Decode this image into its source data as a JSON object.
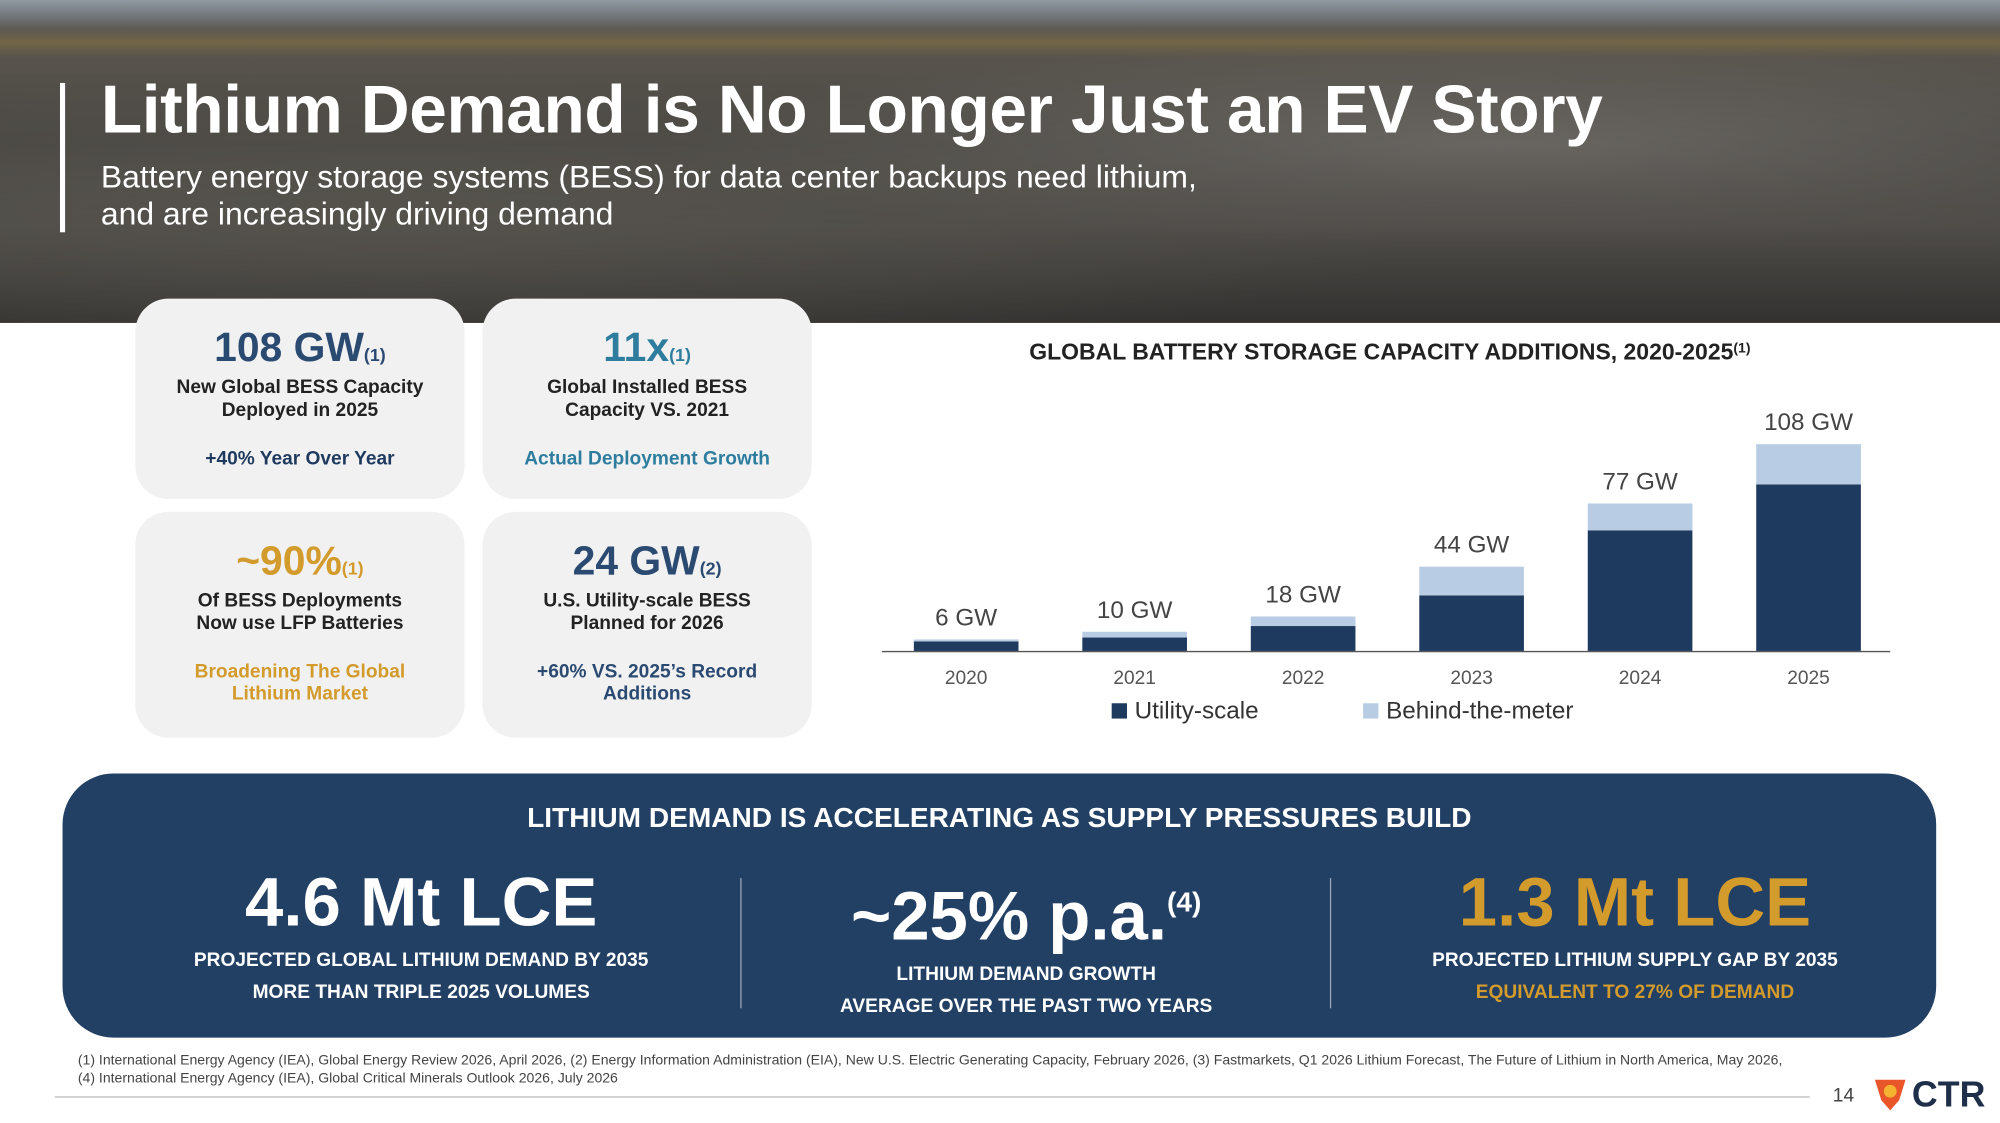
{
  "header": {
    "title": "Lithium Demand is No Longer Just an EV Story",
    "subtitle_lines": [
      "Battery energy storage systems (BESS) for data center backups need lithium,",
      "and are increasingly driving demand"
    ]
  },
  "stat_cards": [
    {
      "value": "108 GW",
      "note": "(1)",
      "color": "#2a4a72",
      "label_lines": [
        "New Global BESS Capacity",
        "Deployed in 2025"
      ],
      "footer_lines": [
        "+40% Year Over Year"
      ],
      "footer_color": "#1f3a5f"
    },
    {
      "value": "11x",
      "note": "(1)",
      "color": "#2e7d9e",
      "label_lines": [
        "Global Installed BESS",
        "Capacity VS. 2021"
      ],
      "footer_lines": [
        "Actual Deployment Growth"
      ],
      "footer_color": "#2e7d9e"
    },
    {
      "value": "~90%",
      "note": "(1)",
      "color": "#d39a2c",
      "label_lines": [
        "Of BESS Deployments",
        "Now use LFP Batteries"
      ],
      "footer_lines": [
        "Broadening The Global",
        "Lithium Market"
      ],
      "footer_color": "#d39a2c"
    },
    {
      "value": "24 GW",
      "note": "(2)",
      "color": "#2a4a72",
      "label_lines": [
        "U.S. Utility-scale BESS",
        "Planned for 2026"
      ],
      "footer_lines": [
        "+60% VS. 2025’s Record",
        "Additions"
      ],
      "footer_color": "#2a4a72"
    }
  ],
  "chart_data": {
    "type": "stacked-bar",
    "title": "GLOBAL BATTERY STORAGE CAPACITY ADDITIONS, 2020-2025",
    "title_note": "(1)",
    "categories": [
      "2020",
      "2021",
      "2022",
      "2023",
      "2024",
      "2025"
    ],
    "series": [
      {
        "name": "Utility-scale",
        "color": "#1f3a5f",
        "values": [
          5,
          7,
          13,
          29,
          63,
          87
        ]
      },
      {
        "name": "Behind-the-meter",
        "color": "#b8cde3",
        "values": [
          1,
          3,
          5,
          15,
          14,
          21
        ]
      }
    ],
    "totals": [
      6,
      10,
      18,
      44,
      77,
      108
    ],
    "value_labels": [
      "6 GW",
      "10 GW",
      "18 GW",
      "44 GW",
      "77 GW",
      "108 GW"
    ]
  },
  "banner": {
    "title": "LITHIUM DEMAND IS ACCELERATING AS SUPPLY PRESSURES BUILD",
    "stats": [
      {
        "value": "4.6 Mt LCE",
        "color": "#ffffff",
        "lines": [
          "PROJECTED GLOBAL LITHIUM DEMAND BY 2035",
          "MORE THAN TRIPLE 2025 VOLUMES"
        ],
        "line_colors": [
          "#ffffff",
          "#ffffff"
        ]
      },
      {
        "value": "~25% p.a.",
        "note": "(4)",
        "color": "#ffffff",
        "lines": [
          "LITHIUM DEMAND GROWTH",
          "AVERAGE OVER THE PAST TWO YEARS"
        ],
        "line_colors": [
          "#ffffff",
          "#ffffff"
        ]
      },
      {
        "value": "1.3 Mt LCE",
        "color": "#d39a2c",
        "lines": [
          "PROJECTED LITHIUM SUPPLY GAP BY 2035",
          "EQUIVALENT TO 27% OF DEMAND"
        ],
        "line_colors": [
          "#ffffff",
          "#d39a2c"
        ]
      }
    ]
  },
  "footnotes": [
    "(1) International Energy Agency (IEA), Global Energy Review 2026, April 2026, (2) Energy Information Administration (EIA), New U.S. Electric Generating Capacity, February 2026, (3) Fastmarkets, Q1 2026 Lithium Forecast, The Future of Lithium in North America, May 2026,",
    "(4) International Energy Agency (IEA), Global Critical Minerals Outlook 2026, July 2026"
  ],
  "page_number": "14",
  "logo": "CTR"
}
